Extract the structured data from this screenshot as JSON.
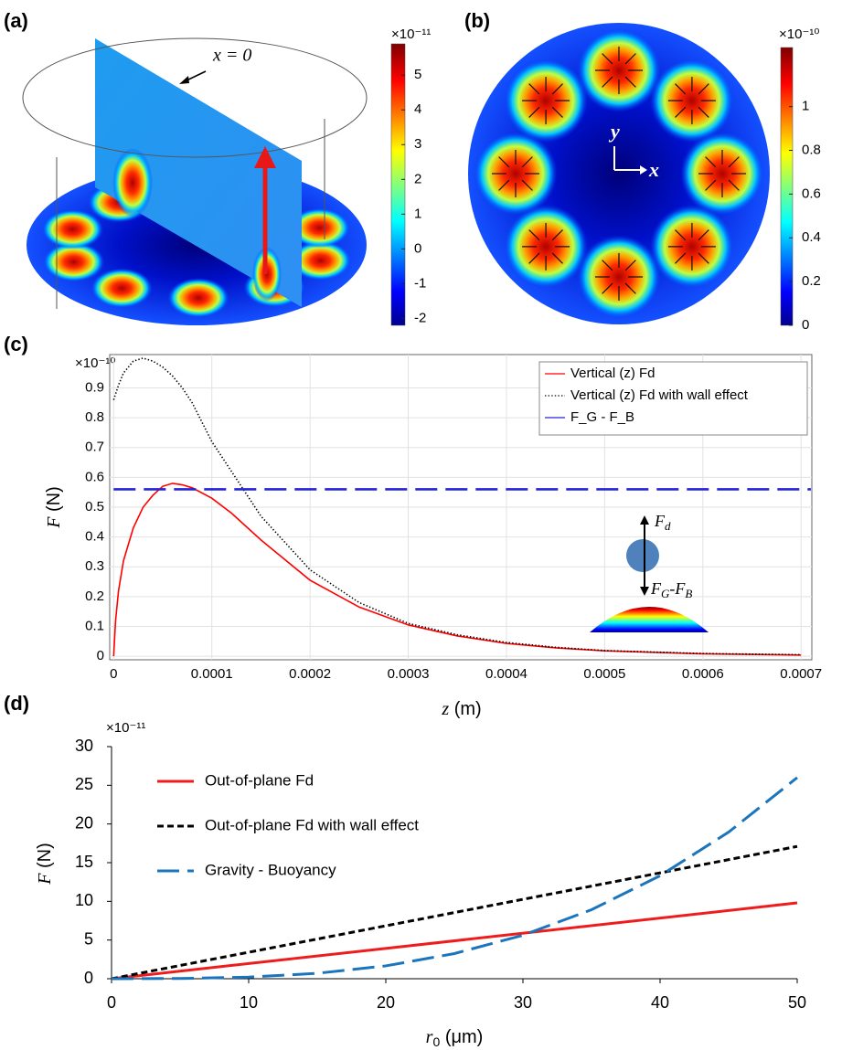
{
  "chart_data": [
    {
      "type": "field",
      "label": "(a)",
      "annotation": "x = 0",
      "colorbar": {
        "multiplier": "×10⁻¹¹",
        "lim": [
          -2.2,
          5.9
        ],
        "ticks": [
          -2,
          -1,
          0,
          1,
          2,
          3,
          4,
          5
        ]
      }
    },
    {
      "type": "field",
      "label": "(b)",
      "annotations": [
        "y",
        "x"
      ],
      "colorbar": {
        "multiplier": "×10⁻¹⁰",
        "lim": [
          0,
          1.27
        ],
        "ticks": [
          0,
          0.2,
          0.4,
          0.6,
          0.8,
          1
        ]
      }
    },
    {
      "type": "line",
      "label": "(c)",
      "multiplier": "×10⁻¹⁰",
      "x_label": {
        "var": "z",
        "unit": "(m)"
      },
      "y_label": {
        "var": "F",
        "unit": "(N)"
      },
      "xlim": [
        -4e-06,
        0.000711
      ],
      "ylim": [
        -0.012,
        1.012
      ],
      "xticks": [
        0,
        0.0001,
        0.0002,
        0.0003,
        0.0004,
        0.0005,
        0.0006,
        0.0007
      ],
      "yticks": [
        0,
        0.1,
        0.2,
        0.3,
        0.4,
        0.5,
        0.6,
        0.7,
        0.8,
        0.9
      ],
      "grid": true,
      "legend": "upper right",
      "legend_frame": true,
      "series": [
        {
          "name": "Vertical (z) Fd",
          "color": "#ff0000",
          "dash": "solid",
          "width": 1.6,
          "x": [
            0,
            2e-06,
            5e-06,
            1e-05,
            2e-05,
            3e-05,
            4e-05,
            5e-05,
            6e-05,
            7e-05,
            8e-05,
            0.0001,
            0.00012,
            0.00015,
            0.0002,
            0.00025,
            0.0003,
            0.00035,
            0.0004,
            0.00045,
            0.0005,
            0.0006,
            0.0007
          ],
          "values": [
            0,
            0.12,
            0.22,
            0.32,
            0.43,
            0.5,
            0.54,
            0.57,
            0.58,
            0.575,
            0.565,
            0.53,
            0.48,
            0.39,
            0.255,
            0.165,
            0.105,
            0.068,
            0.043,
            0.028,
            0.018,
            0.008,
            0.004
          ]
        },
        {
          "name": "Vertical (z) Fd with wall effect",
          "color": "#000000",
          "dash": "dotted",
          "width": 1.6,
          "x": [
            0,
            2e-06,
            5e-06,
            1e-05,
            2e-05,
            3e-05,
            4e-05,
            5e-05,
            6e-05,
            7e-05,
            8e-05,
            0.0001,
            0.00012,
            0.00015,
            0.0002,
            0.00025,
            0.0003,
            0.00035,
            0.0004,
            0.00045,
            0.0005,
            0.0006,
            0.0007
          ],
          "values": [
            0.86,
            0.88,
            0.91,
            0.95,
            0.99,
            1.0,
            0.99,
            0.97,
            0.94,
            0.9,
            0.85,
            0.72,
            0.62,
            0.47,
            0.29,
            0.18,
            0.11,
            0.072,
            0.046,
            0.03,
            0.019,
            0.009,
            0.005
          ]
        },
        {
          "name": "F_G - F_B",
          "color": "#2323d8",
          "dash": "longdash",
          "width": 2.6,
          "x": [
            0,
            0.00071
          ],
          "values": [
            0.56,
            0.56
          ]
        }
      ],
      "inset": {
        "up": [
          "F",
          "d"
        ],
        "down": [
          "F",
          "G",
          "-F",
          "B"
        ]
      }
    },
    {
      "type": "line",
      "label": "(d)",
      "multiplier": "×10⁻¹¹",
      "x_label": {
        "var": "r",
        "sub": "0",
        "unit": "(μm)"
      },
      "y_label": {
        "var": "F",
        "unit": "(N)"
      },
      "xlim": [
        0,
        50
      ],
      "ylim": [
        0,
        30
      ],
      "xticks": [
        0,
        10,
        20,
        30,
        40,
        50
      ],
      "yticks": [
        0,
        5,
        10,
        15,
        20,
        25,
        30
      ],
      "grid": false,
      "legend": "upper left",
      "legend_frame": false,
      "series": [
        {
          "name": "Out-of-plane Fd",
          "color": "#ee1c1c",
          "dash": "solid",
          "width": 3,
          "x": [
            0,
            50
          ],
          "values": [
            0,
            9.8
          ]
        },
        {
          "name": "Out-of-plane Fd with wall effect",
          "color": "#000000",
          "dash": "dashed",
          "width": 3,
          "x": [
            0,
            50
          ],
          "values": [
            0,
            17.1
          ]
        },
        {
          "name": "Gravity - Buoyancy",
          "color": "#1a75bc",
          "dash": "longdash",
          "width": 3,
          "x": [
            0,
            5,
            10,
            15,
            20,
            25,
            30,
            35,
            40,
            45,
            50
          ],
          "values": [
            0,
            0.03,
            0.21,
            0.7,
            1.66,
            3.25,
            5.62,
            8.92,
            13.31,
            18.95,
            26
          ]
        }
      ]
    }
  ]
}
